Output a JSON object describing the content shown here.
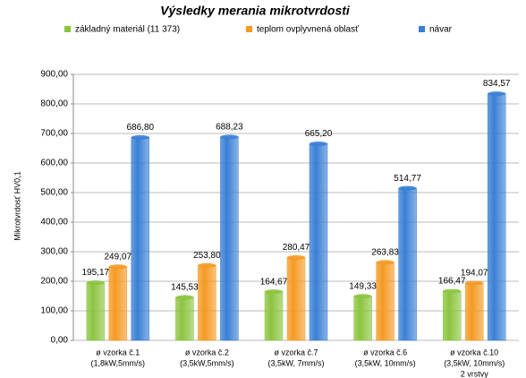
{
  "chart_data": {
    "type": "bar",
    "title": "Výsledky merania mikrotvrdosti",
    "ylabel": "Mikrotvrdosť HV0,1",
    "categories": [
      [
        "ø vzorka č.1",
        "(1,8kW,5mm/s)"
      ],
      [
        "ø vzorka č.2",
        "(3,5kW,5mm/s)"
      ],
      [
        "ø vzorka č.7",
        "(3,5kW, 7mm/s)"
      ],
      [
        "ø vzorka č.6",
        "(3,5kW, 10mm/s)"
      ],
      [
        "ø vzorka č.10",
        "(3,5kW, 10mm/s)",
        "2 vrstvy"
      ]
    ],
    "series": [
      {
        "name": "základný materiál (11 373)",
        "color": "#8cc43f",
        "values": [
          195.17,
          145.53,
          164.67,
          149.33,
          166.47
        ],
        "value_labels": [
          "195,17",
          "145,53",
          "164,67",
          "149,33",
          "166,47"
        ]
      },
      {
        "name": "teplom ovplyvnená oblasť",
        "color": "#f59a23",
        "values": [
          249.07,
          253.8,
          280.47,
          263.83,
          194.07
        ],
        "value_labels": [
          "249,07",
          "253,80",
          "280,47",
          "263,83",
          "194,07"
        ]
      },
      {
        "name": "návar",
        "color": "#3a7fd5",
        "values": [
          686.8,
          688.23,
          665.2,
          514.77,
          834.57
        ],
        "value_labels": [
          "686,80",
          "688,23",
          "665,20",
          "514,77",
          "834,57"
        ]
      }
    ],
    "ylim": [
      0,
      900
    ],
    "yticks": [
      {
        "value": 0,
        "label": "0,00"
      },
      {
        "value": 100,
        "label": "100,00"
      },
      {
        "value": 200,
        "label": "200,00"
      },
      {
        "value": 300,
        "label": "300,00"
      },
      {
        "value": 400,
        "label": "400,00"
      },
      {
        "value": 500,
        "label": "500,00"
      },
      {
        "value": 600,
        "label": "600,00"
      },
      {
        "value": 700,
        "label": "700,00"
      },
      {
        "value": 800,
        "label": "800,00"
      },
      {
        "value": 900,
        "label": "900,00"
      }
    ],
    "grid": true
  }
}
